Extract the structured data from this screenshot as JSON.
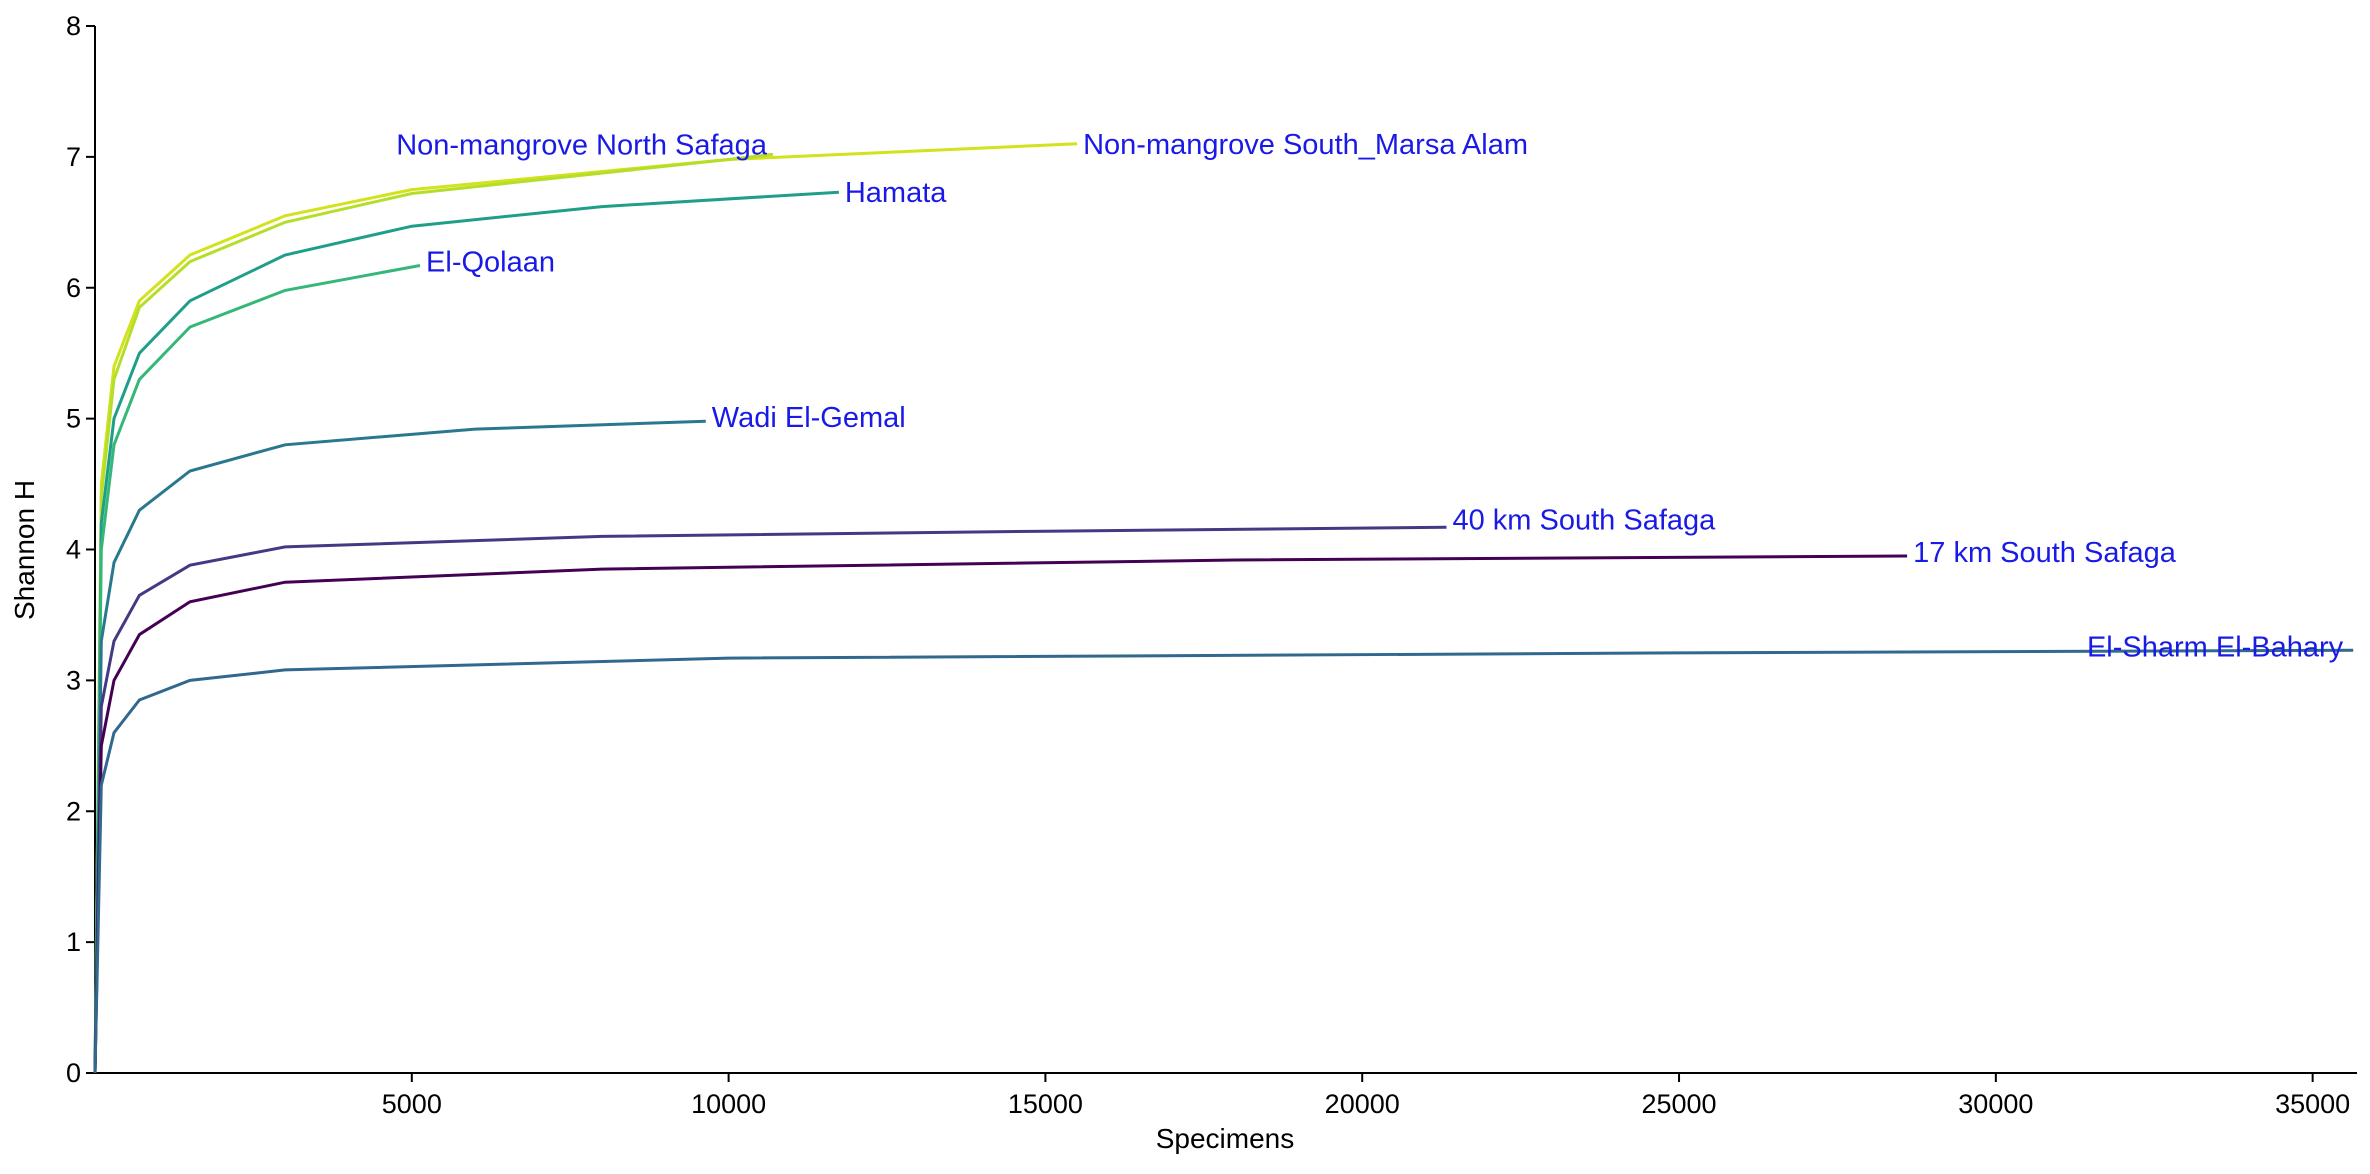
{
  "chart_data": {
    "type": "line",
    "x_label": "Specimens",
    "y_label": "Shannon H",
    "xlim": [
      0,
      35700
    ],
    "ylim": [
      0,
      8
    ],
    "xticks": [
      5000,
      10000,
      15000,
      20000,
      25000,
      30000,
      35000
    ],
    "yticks": [
      0,
      1,
      2,
      3,
      4,
      5,
      6,
      7,
      8
    ],
    "grid": false,
    "series": [
      {
        "name": "Non-mangrove South_Marsa Alam",
        "color": "#d2e21b",
        "x": [
          0,
          100,
          300,
          700,
          1500,
          3000,
          5000,
          10000,
          15500
        ],
        "values": [
          0,
          4.5,
          5.4,
          5.9,
          6.25,
          6.55,
          6.75,
          6.98,
          7.1
        ]
      },
      {
        "name": "Non-mangrove North Safaga",
        "color": "#b5de2b",
        "x": [
          0,
          100,
          300,
          700,
          1500,
          3000,
          5000,
          10000,
          10700
        ],
        "values": [
          0,
          4.4,
          5.3,
          5.85,
          6.2,
          6.5,
          6.72,
          6.98,
          7.02
        ]
      },
      {
        "name": "Hamata",
        "color": "#1f9e89",
        "x": [
          0,
          100,
          300,
          700,
          1500,
          3000,
          5000,
          8000,
          11740
        ],
        "values": [
          0,
          4.2,
          5.0,
          5.5,
          5.9,
          6.25,
          6.47,
          6.62,
          6.73
        ]
      },
      {
        "name": "El-Qolaan",
        "color": "#35b779",
        "x": [
          0,
          100,
          300,
          700,
          1500,
          3000,
          5130
        ],
        "values": [
          0,
          4.0,
          4.8,
          5.3,
          5.7,
          5.98,
          6.17
        ]
      },
      {
        "name": "Wadi El-Gemal",
        "color": "#2a788e",
        "x": [
          0,
          100,
          300,
          700,
          1500,
          3000,
          6000,
          9640
        ],
        "values": [
          0,
          3.3,
          3.9,
          4.3,
          4.6,
          4.8,
          4.92,
          4.98
        ]
      },
      {
        "name": "40 km South Safaga",
        "color": "#443983",
        "x": [
          0,
          100,
          300,
          700,
          1500,
          3000,
          8000,
          15000,
          21330
        ],
        "values": [
          0,
          2.8,
          3.3,
          3.65,
          3.88,
          4.02,
          4.1,
          4.14,
          4.17
        ]
      },
      {
        "name": "17 km South Safaga",
        "color": "#440154",
        "x": [
          0,
          100,
          300,
          700,
          1500,
          3000,
          8000,
          18000,
          28600
        ],
        "values": [
          0,
          2.5,
          3.0,
          3.35,
          3.6,
          3.75,
          3.85,
          3.92,
          3.95
        ]
      },
      {
        "name": "El-Sharm El-Bahary",
        "color": "#31688e",
        "x": [
          0,
          100,
          300,
          700,
          1500,
          3000,
          10000,
          25000,
          35640
        ],
        "values": [
          0,
          2.2,
          2.6,
          2.85,
          3.0,
          3.08,
          3.17,
          3.21,
          3.23
        ]
      }
    ]
  }
}
